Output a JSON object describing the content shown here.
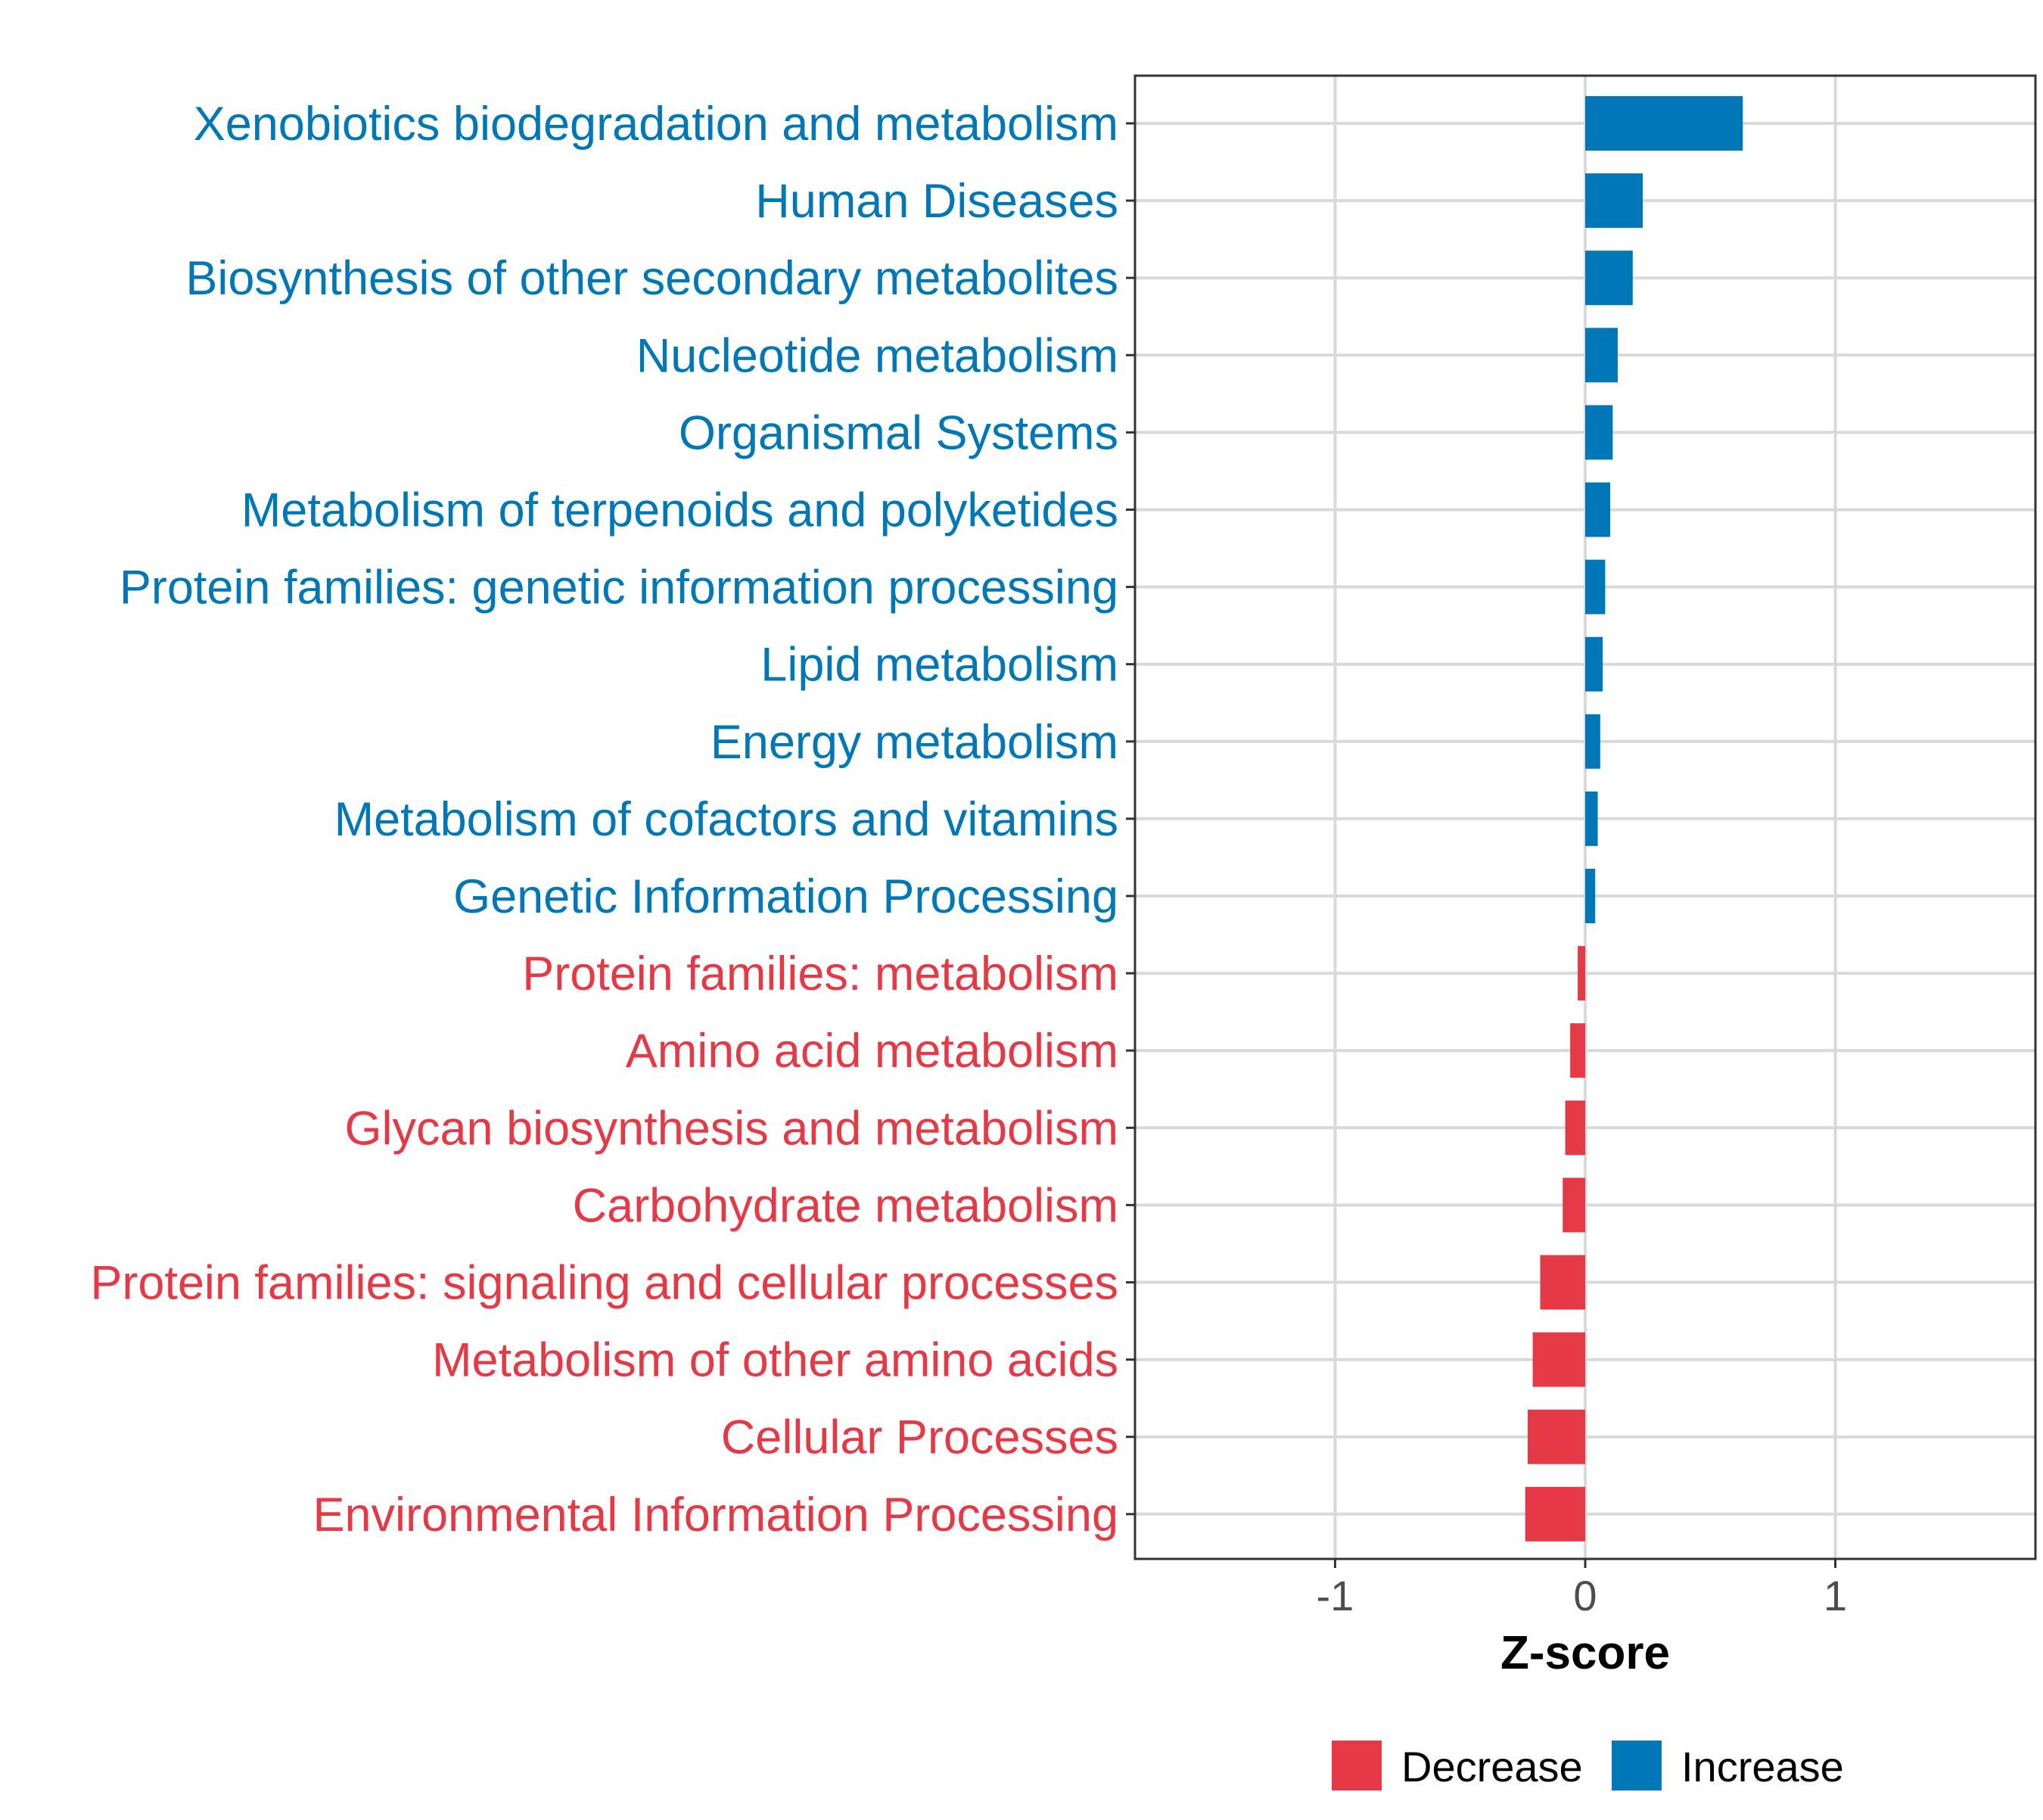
{
  "chart_data": {
    "type": "bar",
    "orientation": "horizontal",
    "title": "",
    "xlabel": "Z-score",
    "ylabel": "",
    "xlim": [
      -1.8,
      1.8
    ],
    "xticks": [
      -1,
      0,
      1
    ],
    "xtick_labels": [
      "-1",
      "0",
      "1"
    ],
    "grid": true,
    "legend_position": "bottom",
    "legend": [
      {
        "label": "Decrease",
        "color": "#E63946"
      },
      {
        "label": "Increase",
        "color": "#0077B6"
      }
    ],
    "categories": [
      "Xenobiotics biodegradation and metabolism",
      "Human Diseases",
      "Biosynthesis of other secondary metabolites",
      "Nucleotide metabolism",
      "Organismal Systems",
      "Metabolism of terpenoids and polyketides",
      "Protein families: genetic information processing",
      "Lipid metabolism",
      "Energy metabolism",
      "Metabolism of cofactors and vitamins",
      "Genetic Information Processing",
      "Protein families: metabolism",
      "Amino acid metabolism",
      "Glycan biosynthesis and metabolism",
      "Carbohydrate metabolism",
      "Protein families: signaling and cellular processes",
      "Metabolism of other amino acids",
      "Cellular Processes",
      "Environmental Information Processing"
    ],
    "values": [
      0.63,
      0.23,
      0.19,
      0.13,
      0.11,
      0.1,
      0.08,
      0.07,
      0.06,
      0.05,
      0.04,
      -0.03,
      -0.06,
      -0.08,
      -0.09,
      -0.18,
      -0.21,
      -0.23,
      -0.24
    ],
    "groups": [
      "Increase",
      "Increase",
      "Increase",
      "Increase",
      "Increase",
      "Increase",
      "Increase",
      "Increase",
      "Increase",
      "Increase",
      "Increase",
      "Decrease",
      "Decrease",
      "Decrease",
      "Decrease",
      "Decrease",
      "Decrease",
      "Decrease",
      "Decrease"
    ]
  },
  "colors": {
    "decrease": "#E63946",
    "increase": "#0077B6",
    "grid": "#D9D9D9",
    "axis": "#333333",
    "tick_text": "#4D4D4D"
  }
}
